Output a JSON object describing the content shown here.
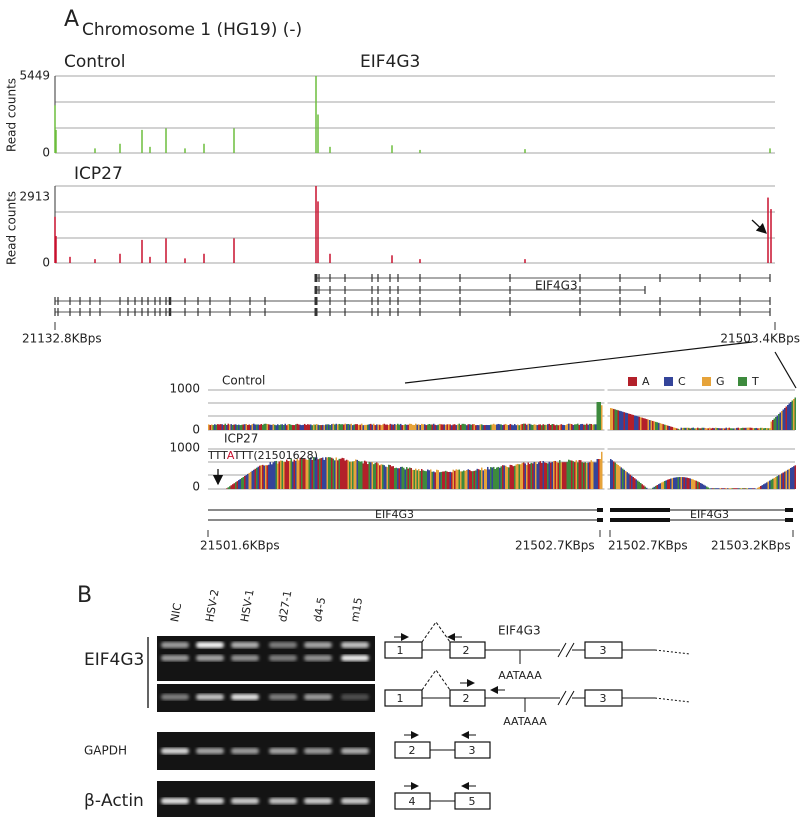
{
  "panel_a": {
    "label": "A",
    "title": "Chromosome 1 (HG19) (-)",
    "gene": "EIF4G3",
    "tracks": [
      {
        "name": "Control",
        "ylabel": "Read counts",
        "ymax": 5449,
        "ymin": 0,
        "color": "#6cbd3c"
      },
      {
        "name": "ICP27",
        "ylabel": "Read counts",
        "ymax": 2913,
        "ymin": 0,
        "color": "#c8102e"
      }
    ],
    "gene_label": "EIF4G3",
    "x_start": "21132.8KBps",
    "x_end": "21503.4KBps",
    "zoom": {
      "tracks": [
        {
          "name": "Control",
          "ymax": 1000,
          "ymin": 0
        },
        {
          "name": "ICP27",
          "ymax": 1000,
          "ymin": 0,
          "annotation_prefix": "TTT",
          "annotation_highlight": "A",
          "annotation_suffix": "TTT(21501628)"
        }
      ],
      "legend": [
        {
          "name": "A",
          "color": "#b3202a"
        },
        {
          "name": "C",
          "color": "#34449a"
        },
        {
          "name": "G",
          "color": "#e6a33a"
        },
        {
          "name": "T",
          "color": "#3d8a3d"
        }
      ],
      "gene_labels": [
        "EIF4G3",
        "EIF4G3"
      ],
      "x_labels": [
        "21501.6KBps",
        "21502.7KBps",
        "21502.7KBps",
        "21503.2KBps"
      ]
    }
  },
  "panel_b": {
    "label": "B",
    "lanes": [
      "NIC",
      "HSV-2",
      "HSV-1",
      "d27-1",
      "d4-5",
      "m15"
    ],
    "gels": [
      {
        "label": "EIF4G3"
      },
      {
        "label": "EIF4G3"
      },
      {
        "label": "GAPDH"
      },
      {
        "label": "β-Actin"
      }
    ],
    "diagram_gene": "EIF4G3",
    "exons": [
      "1",
      "2",
      "3",
      "4",
      "5"
    ],
    "motifs": [
      "AATAAA",
      "AATAAA"
    ]
  }
}
